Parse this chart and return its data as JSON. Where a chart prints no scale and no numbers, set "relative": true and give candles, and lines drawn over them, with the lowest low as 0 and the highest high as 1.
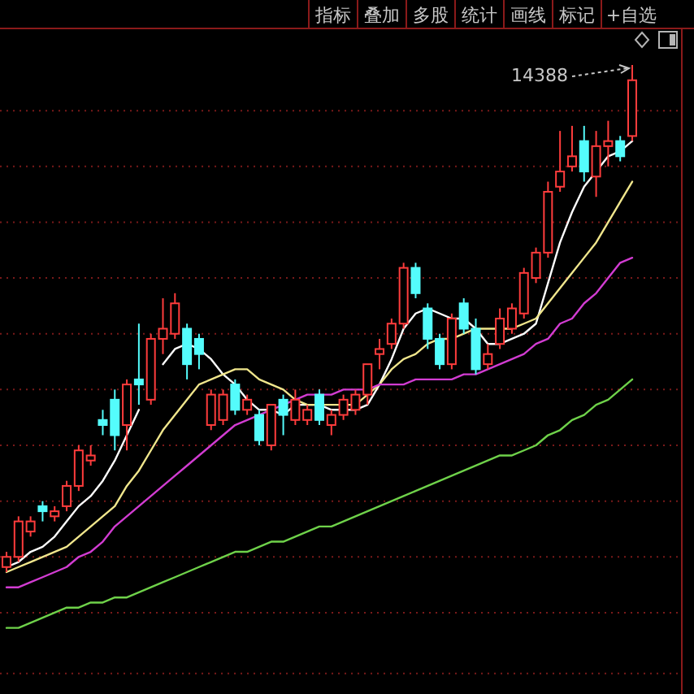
{
  "chart_data": {
    "type": "candlestick",
    "relative": true,
    "ref_lines": [
      {
        "axis": "y",
        "value": 0.91,
        "color": "#7a1a1a",
        "line_style": "dotted"
      },
      {
        "axis": "y",
        "value": 0.8,
        "color": "#7a1a1a",
        "line_style": "dotted"
      },
      {
        "axis": "y",
        "value": 0.69,
        "color": "#7a1a1a",
        "line_style": "dotted"
      },
      {
        "axis": "y",
        "value": 0.58,
        "color": "#7a1a1a",
        "line_style": "dotted"
      },
      {
        "axis": "y",
        "value": 0.47,
        "color": "#7a1a1a",
        "line_style": "dotted"
      },
      {
        "axis": "y",
        "value": 0.36,
        "color": "#7a1a1a",
        "line_style": "dotted"
      },
      {
        "axis": "y",
        "value": 0.25,
        "color": "#7a1a1a",
        "line_style": "dotted"
      },
      {
        "axis": "y",
        "value": 0.14,
        "color": "#7a1a1a",
        "line_style": "dotted"
      },
      {
        "axis": "y",
        "value": 0.03,
        "color": "#7a1a1a",
        "line_style": "dotted"
      },
      {
        "axis": "y",
        "value": -0.08,
        "color": "#7a1a1a",
        "line_style": "dotted"
      },
      {
        "axis": "y",
        "value": -0.2,
        "color": "#7a1a1a",
        "line_style": "dotted"
      }
    ],
    "categories": [
      null,
      null,
      null,
      null,
      null,
      null,
      null,
      null,
      null,
      null,
      null,
      null,
      null,
      null,
      null,
      null,
      null,
      null,
      null,
      null,
      null,
      null,
      null,
      null,
      null,
      null,
      null,
      null,
      null,
      null,
      null,
      null,
      null,
      null,
      null,
      null,
      null,
      null,
      null,
      null,
      null,
      null,
      null,
      null,
      null,
      null,
      null,
      null,
      null,
      null,
      null,
      null,
      null
    ],
    "ohlc": [
      [
        0.01,
        0.04,
        0,
        0.03
      ],
      [
        0.03,
        0.11,
        0.02,
        0.1
      ],
      [
        0.08,
        0.11,
        0.07,
        0.1
      ],
      [
        0.13,
        0.14,
        0.1,
        0.12
      ],
      [
        0.11,
        0.13,
        0.1,
        0.12
      ],
      [
        0.13,
        0.18,
        0.12,
        0.17
      ],
      [
        0.17,
        0.25,
        0.16,
        0.24
      ],
      [
        0.22,
        0.25,
        0.21,
        0.23
      ],
      [
        0.3,
        0.32,
        0.27,
        0.29
      ],
      [
        0.34,
        0.36,
        0.24,
        0.27
      ],
      [
        0.29,
        0.38,
        0.24,
        0.37
      ],
      [
        0.38,
        0.49,
        0.33,
        0.37
      ],
      [
        0.34,
        0.47,
        0.33,
        0.46
      ],
      [
        0.46,
        0.54,
        0.43,
        0.48
      ],
      [
        0.47,
        0.55,
        0.46,
        0.53
      ],
      [
        0.48,
        0.49,
        0.38,
        0.41
      ],
      [
        0.46,
        0.47,
        0.4,
        0.43
      ],
      [
        0.29,
        0.36,
        0.28,
        0.35
      ],
      [
        0.3,
        0.36,
        0.29,
        0.35
      ],
      [
        0.37,
        0.38,
        0.31,
        0.32
      ],
      [
        0.32,
        0.35,
        0.31,
        0.34
      ],
      [
        0.31,
        0.32,
        0.25,
        0.26
      ],
      [
        0.25,
        0.33,
        0.24,
        0.33
      ],
      [
        0.34,
        0.35,
        0.27,
        0.31
      ],
      [
        0.3,
        0.36,
        0.29,
        0.34
      ],
      [
        0.3,
        0.33,
        0.29,
        0.32
      ],
      [
        0.35,
        0.36,
        0.29,
        0.3
      ],
      [
        0.29,
        0.32,
        0.27,
        0.31
      ],
      [
        0.31,
        0.35,
        0.3,
        0.34
      ],
      [
        0.32,
        0.36,
        0.31,
        0.35
      ],
      [
        0.35,
        0.41,
        0.33,
        0.41
      ],
      [
        0.43,
        0.46,
        0.4,
        0.44
      ],
      [
        0.45,
        0.5,
        0.44,
        0.49
      ],
      [
        0.49,
        0.61,
        0.48,
        0.6
      ],
      [
        0.6,
        0.61,
        0.54,
        0.55
      ],
      [
        0.52,
        0.53,
        0.44,
        0.46
      ],
      [
        0.46,
        0.47,
        0.4,
        0.41
      ],
      [
        0.41,
        0.51,
        0.4,
        0.5
      ],
      [
        0.53,
        0.54,
        0.47,
        0.48
      ],
      [
        0.48,
        0.5,
        0.39,
        0.4
      ],
      [
        0.41,
        0.45,
        0.4,
        0.43
      ],
      [
        0.45,
        0.52,
        0.44,
        0.5
      ],
      [
        0.48,
        0.53,
        0.47,
        0.52
      ],
      [
        0.51,
        0.6,
        0.5,
        0.59
      ],
      [
        0.58,
        0.64,
        0.57,
        0.63
      ],
      [
        0.63,
        0.77,
        0.62,
        0.75
      ],
      [
        0.76,
        0.87,
        0.75,
        0.79
      ],
      [
        0.8,
        0.88,
        0.79,
        0.82
      ],
      [
        0.85,
        0.88,
        0.77,
        0.79
      ],
      [
        0.78,
        0.87,
        0.74,
        0.84
      ],
      [
        0.84,
        0.89,
        0.8,
        0.85
      ],
      [
        0.85,
        0.86,
        0.81,
        0.82
      ],
      [
        0.86,
        1,
        0.85,
        0.97
      ]
    ],
    "colors": [
      "#ff3c3c",
      "#ff3c3c",
      "#ff3c3c",
      "#54fcfc",
      "#ff3c3c",
      "#ff3c3c",
      "#ff3c3c",
      "#ff3c3c",
      "#54fcfc",
      "#54fcfc",
      "#ff3c3c",
      "#54fcfc",
      "#ff3c3c",
      "#ff3c3c",
      "#ff3c3c",
      "#54fcfc",
      "#54fcfc",
      "#ff3c3c",
      "#ff3c3c",
      "#54fcfc",
      "#ff3c3c",
      "#54fcfc",
      "#ff3c3c",
      "#54fcfc",
      "#ff3c3c",
      "#ff3c3c",
      "#54fcfc",
      "#ff3c3c",
      "#ff3c3c",
      "#ff3c3c",
      "#ff3c3c",
      "#ff3c3c",
      "#ff3c3c",
      "#ff3c3c",
      "#54fcfc",
      "#54fcfc",
      "#54fcfc",
      "#ff3c3c",
      "#54fcfc",
      "#54fcfc",
      "#ff3c3c",
      "#ff3c3c",
      "#ff3c3c",
      "#ff3c3c",
      "#ff3c3c",
      "#ff3c3c",
      "#ff3c3c",
      "#ff3c3c",
      "#54fcfc",
      "#ff3c3c",
      "#ff3c3c",
      "#54fcfc",
      "#ff3c3c"
    ],
    "series": [
      {
        "type": "line",
        "color": "#ffffff",
        "values": [
          0.01,
          0.02,
          0.04,
          0.05,
          0.07,
          0.1,
          0.13,
          0.15,
          0.18,
          0.22,
          0.27,
          0.32,
          null,
          0.41,
          0.44,
          0.45,
          0.44,
          0.42,
          0.39,
          0.37,
          0.34,
          0.32,
          0.32,
          0.31,
          0.33,
          0.33,
          0.33,
          0.32,
          0.32,
          0.32,
          0.33,
          0.37,
          0.42,
          0.48,
          0.51,
          0.52,
          0.51,
          0.5,
          0.5,
          0.48,
          0.45,
          0.45,
          0.46,
          0.47,
          0.49,
          0.57,
          0.65,
          0.71,
          0.76,
          0.79,
          0.82,
          0.83,
          0.85
        ]
      },
      {
        "type": "line",
        "color": "#f0e68c",
        "values": [
          0,
          0.01,
          0.02,
          0.03,
          0.04,
          0.05,
          0.07,
          0.09,
          0.11,
          0.13,
          0.17,
          0.2,
          0.24,
          0.28,
          0.31,
          0.34,
          0.37,
          0.38,
          0.39,
          0.4,
          0.4,
          0.38,
          0.37,
          0.36,
          0.34,
          0.33,
          0.33,
          0.33,
          0.33,
          0.33,
          0.35,
          0.37,
          0.4,
          0.42,
          0.43,
          0.45,
          0.46,
          0.46,
          0.47,
          0.48,
          0.48,
          0.48,
          0.48,
          0.49,
          0.5,
          0.53,
          0.56,
          0.59,
          0.62,
          0.65,
          0.69,
          0.73,
          0.77
        ]
      },
      {
        "type": "line",
        "color": "#d23cd2",
        "values": [
          -0.03,
          -0.03,
          -0.02,
          -0.01,
          0,
          0.01,
          0.03,
          0.04,
          0.06,
          0.09,
          0.11,
          0.13,
          0.15,
          0.17,
          0.19,
          0.21,
          0.23,
          0.25,
          0.27,
          0.29,
          0.3,
          0.31,
          0.32,
          0.33,
          0.34,
          0.35,
          0.35,
          0.35,
          0.36,
          0.36,
          0.36,
          0.37,
          0.37,
          0.37,
          0.38,
          0.38,
          0.38,
          0.38,
          0.39,
          0.39,
          0.4,
          0.41,
          0.42,
          0.43,
          0.45,
          0.46,
          0.49,
          0.5,
          0.53,
          0.55,
          0.58,
          0.61,
          0.62
        ]
      },
      {
        "type": "line",
        "color": "#6fd24a",
        "values": [
          -0.11,
          -0.11,
          -0.1,
          -0.09,
          -0.08,
          -0.07,
          -0.07,
          -0.06,
          -0.06,
          -0.05,
          -0.05,
          -0.04,
          -0.03,
          -0.02,
          -0.01,
          0,
          0.01,
          0.02,
          0.03,
          0.04,
          0.04,
          0.05,
          0.06,
          0.06,
          0.07,
          0.08,
          0.09,
          0.09,
          0.1,
          0.11,
          0.12,
          0.13,
          0.14,
          0.15,
          0.16,
          0.17,
          0.18,
          0.19,
          0.2,
          0.21,
          0.22,
          0.23,
          0.23,
          0.24,
          0.25,
          0.27,
          0.28,
          0.3,
          0.31,
          0.33,
          0.34,
          0.36,
          0.38
        ]
      }
    ],
    "annotations": [
      "指标",
      "叠加",
      "多股",
      "统计",
      "画线",
      "标记",
      "+自选",
      "14388"
    ]
  }
}
